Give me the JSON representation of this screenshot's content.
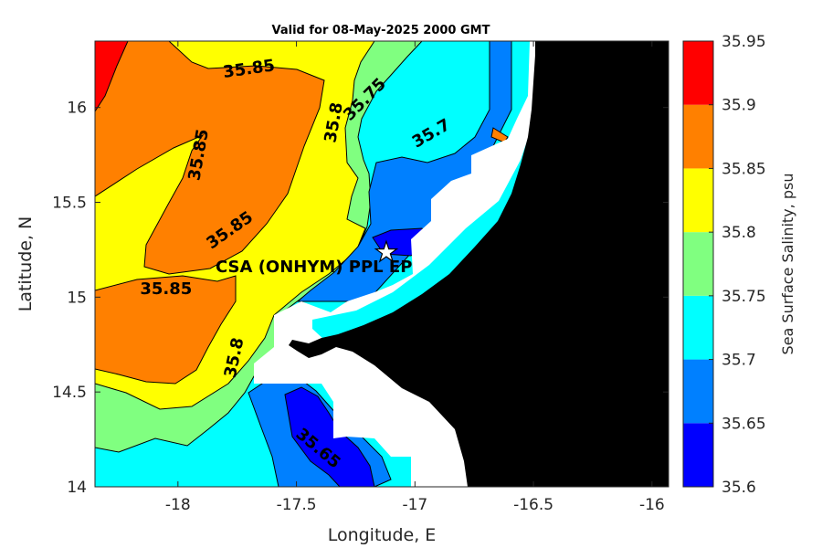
{
  "chart_data": {
    "type": "heatmap",
    "title": "Valid for 08-May-2025 2000 GMT",
    "xlabel": "Longitude, E",
    "ylabel": "Latitude, N",
    "xlim": [
      -18.35,
      -15.93
    ],
    "ylim": [
      14.0,
      16.35
    ],
    "x_ticks": [
      -18,
      -17.5,
      -17,
      -16.5,
      -16
    ],
    "x_tick_labels": [
      "-18",
      "-17.5",
      "-17",
      "-16.5",
      "-16"
    ],
    "y_ticks": [
      14,
      14.5,
      15,
      15.5,
      16
    ],
    "y_tick_labels": [
      "14",
      "14.5",
      "15",
      "15.5",
      "16"
    ],
    "colorbar": {
      "label": "Sea Surface Salinity, psu",
      "levels": [
        35.6,
        35.65,
        35.7,
        35.75,
        35.8,
        35.85,
        35.9,
        35.95
      ],
      "level_labels": [
        "35.6",
        "35.65",
        "35.7",
        "35.75",
        "35.8",
        "35.85",
        "35.9",
        "35.95"
      ],
      "colors": [
        "#0000ff",
        "#0080ff",
        "#00ffff",
        "#80ff80",
        "#ffff00",
        "#ff8000",
        "#ff0000"
      ]
    },
    "contour_labels": [
      {
        "text": "35.85",
        "lon": -17.7,
        "lat": 16.2
      },
      {
        "text": "35.85",
        "lon": -17.91,
        "lat": 15.75
      },
      {
        "text": "35.85",
        "lon": -17.78,
        "lat": 15.35
      },
      {
        "text": "35.85",
        "lon": -18.05,
        "lat": 15.04
      },
      {
        "text": "35.8",
        "lon": -17.34,
        "lat": 15.92
      },
      {
        "text": "35.75",
        "lon": -17.21,
        "lat": 16.04
      },
      {
        "text": "35.7",
        "lon": -16.93,
        "lat": 15.86
      },
      {
        "text": "35.8",
        "lon": -17.76,
        "lat": 14.68
      },
      {
        "text": "35.65",
        "lon": -17.41,
        "lat": 14.2
      }
    ],
    "site": {
      "label": "CSA (ONHYM) PPL EP",
      "lon": -17.11,
      "lat": 15.22,
      "marker": "star"
    },
    "land_color": "#000000",
    "nodata_color": "#ffffff"
  }
}
